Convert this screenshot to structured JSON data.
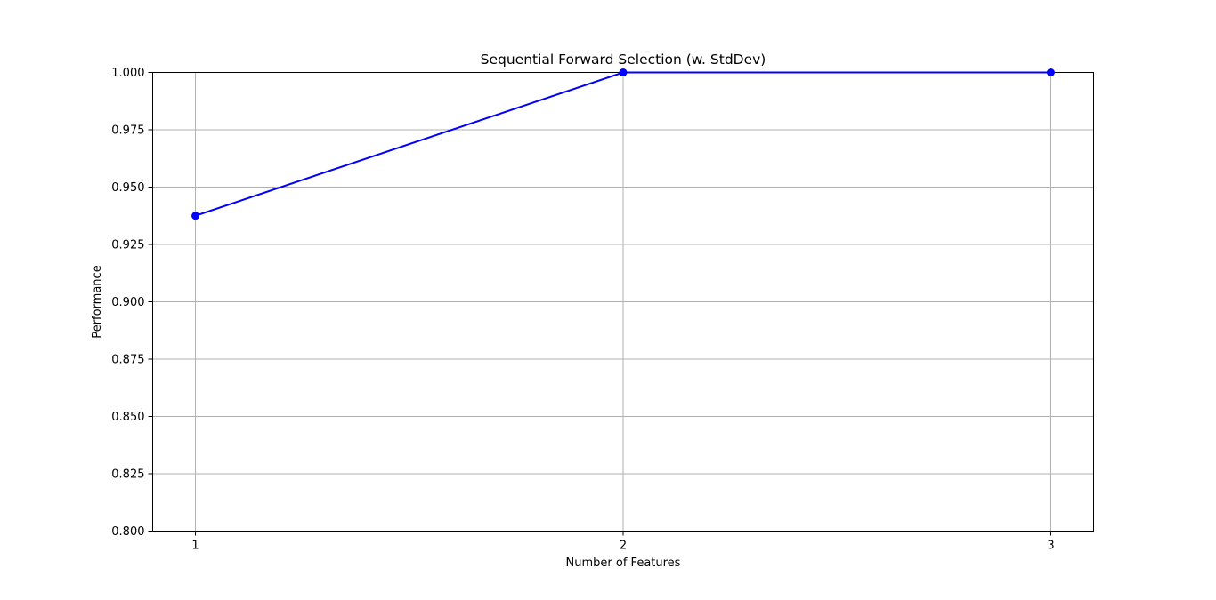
{
  "chart_data": {
    "type": "line",
    "title": "Sequential Forward Selection (w. StdDev)",
    "xlabel": "Number of Features",
    "ylabel": "Performance",
    "x": [
      1,
      2,
      3
    ],
    "x_ticks": [
      "1",
      "2",
      "3"
    ],
    "xlim": [
      0.9,
      3.1
    ],
    "ylim": [
      0.8,
      1.0
    ],
    "y_ticks": [
      "0.800",
      "0.825",
      "0.850",
      "0.875",
      "0.900",
      "0.925",
      "0.950",
      "0.975",
      "1.000"
    ],
    "series": [
      {
        "values": [
          0.9375,
          1.0,
          1.0
        ],
        "color": "#0000ff",
        "marker": "circle"
      }
    ],
    "grid": true,
    "legend": "none"
  }
}
